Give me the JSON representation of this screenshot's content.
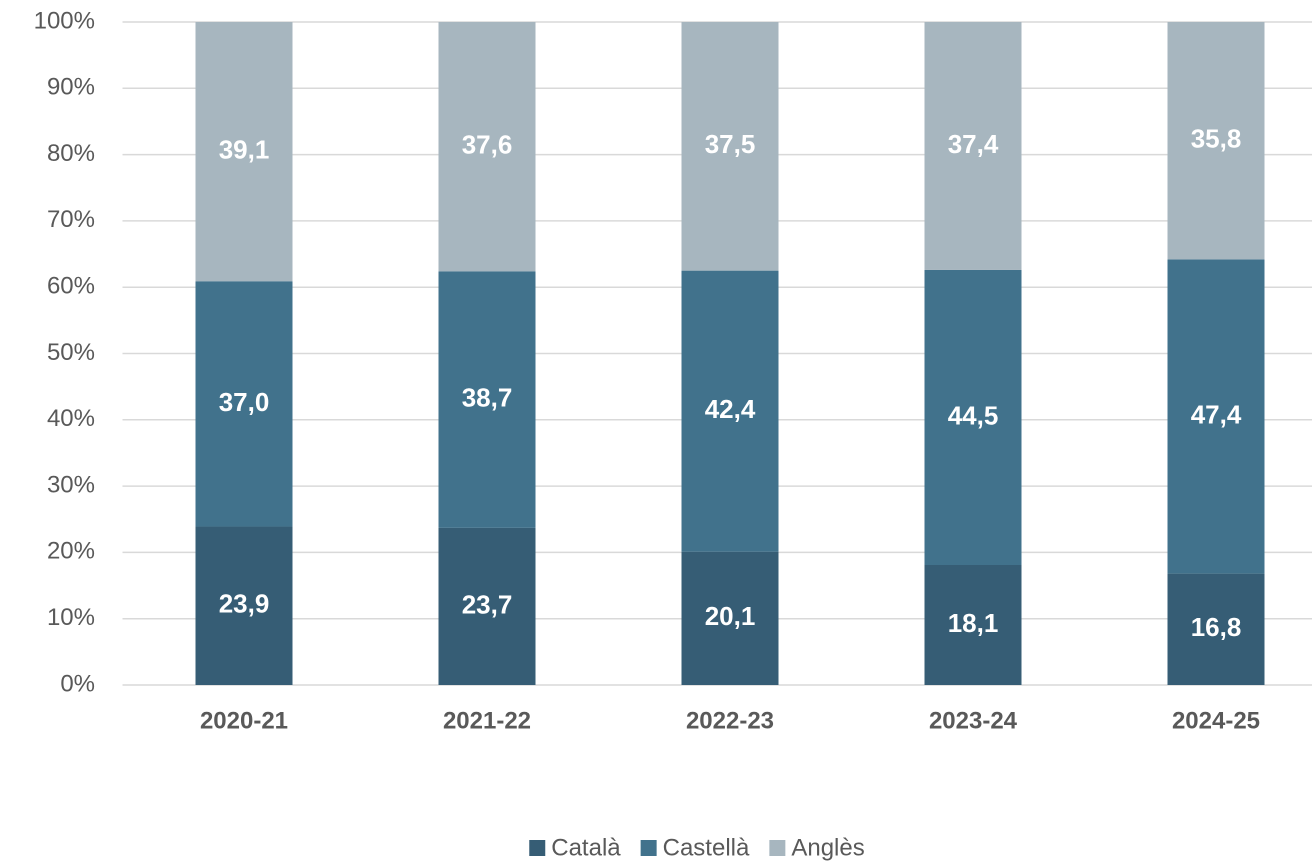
{
  "chart_data": {
    "type": "stacked_bar",
    "categories": [
      "2020-21",
      "2021-22",
      "2022-23",
      "2023-24",
      "2024-25"
    ],
    "series": [
      {
        "name": "Català",
        "color": "#365d75",
        "values": [
          23.9,
          23.7,
          20.1,
          18.1,
          16.8
        ],
        "value_labels": [
          "23,9",
          "23,7",
          "20,1",
          "18,1",
          "16,8"
        ]
      },
      {
        "name": "Castellà",
        "color": "#41728c",
        "values": [
          37.0,
          38.7,
          42.4,
          44.5,
          47.4
        ],
        "value_labels": [
          "37,0",
          "38,7",
          "42,4",
          "44,5",
          "47,4"
        ]
      },
      {
        "name": "Anglès",
        "color": "#a7b6bf",
        "values": [
          39.1,
          37.6,
          37.5,
          37.4,
          35.8
        ],
        "value_labels": [
          "39,1",
          "37,6",
          "37,5",
          "37,4",
          "35,8"
        ]
      }
    ],
    "ylim": [
      0,
      100
    ],
    "yticks": [
      {
        "value": 0,
        "label": "0%"
      },
      {
        "value": 10,
        "label": "10%"
      },
      {
        "value": 20,
        "label": "20%"
      },
      {
        "value": 30,
        "label": "30%"
      },
      {
        "value": 40,
        "label": "40%"
      },
      {
        "value": 50,
        "label": "50%"
      },
      {
        "value": 60,
        "label": "60%"
      },
      {
        "value": 70,
        "label": "70%"
      },
      {
        "value": 80,
        "label": "80%"
      },
      {
        "value": 90,
        "label": "90%"
      },
      {
        "value": 100,
        "label": "100%"
      }
    ],
    "grid": true,
    "legend": "bottom"
  }
}
